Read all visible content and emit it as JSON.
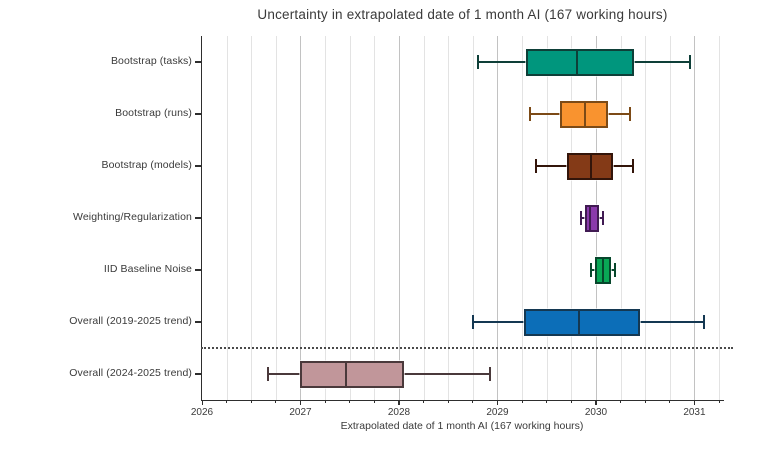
{
  "chart_data": {
    "type": "boxplot",
    "orientation": "horizontal",
    "title": "Uncertainty in extrapolated date of 1 month AI (167 working hours)",
    "xlabel": "Extrapolated date of 1 month AI (167 working hours)",
    "xlim": [
      2026,
      2031.3
    ],
    "xticks": [
      2026,
      2027,
      2028,
      2029,
      2030,
      2031
    ],
    "minor_tick_interval": 0.25,
    "grid": {
      "axis": "x",
      "interval": 0.25,
      "minor_color": "#e3e3e3",
      "major_color": "#c2c2c2"
    },
    "legend": "none",
    "separator": {
      "type": "dotted-line",
      "between": [
        "Overall (2019-2025 trend)",
        "Overall (2024-2025 trend)"
      ],
      "color": "#4a4a4a"
    },
    "categories": [
      "Bootstrap (tasks)",
      "Bootstrap (runs)",
      "Bootstrap (models)",
      "Weighting/Regularization",
      "IID Baseline Noise",
      "Overall (2019-2025 trend)",
      "Overall (2024-2025 trend)"
    ],
    "series": [
      {
        "label": "Bootstrap (tasks)",
        "whisker_low": 2028.8,
        "q1": 2029.29,
        "median": 2029.81,
        "q3": 2030.39,
        "whisker_high": 2030.95,
        "fill_color": "#00967d",
        "edge_color": "#0e3f38"
      },
      {
        "label": "Bootstrap (runs)",
        "whisker_low": 2029.33,
        "q1": 2029.63,
        "median": 2029.89,
        "q3": 2030.12,
        "whisker_high": 2030.35,
        "fill_color": "#f9932f",
        "edge_color": "#7c4a16"
      },
      {
        "label": "Bootstrap (models)",
        "whisker_low": 2029.39,
        "q1": 2029.71,
        "median": 2029.95,
        "q3": 2030.17,
        "whisker_high": 2030.38,
        "fill_color": "#843a17",
        "edge_color": "#33150a"
      },
      {
        "label": "Weighting/Regularization",
        "whisker_low": 2029.85,
        "q1": 2029.89,
        "median": 2029.94,
        "q3": 2030.03,
        "whisker_high": 2030.07,
        "fill_color": "#8a3aab",
        "edge_color": "#401a52"
      },
      {
        "label": "IID Baseline Noise",
        "whisker_low": 2029.95,
        "q1": 2029.99,
        "median": 2030.07,
        "q3": 2030.15,
        "whisker_high": 2030.19,
        "fill_color": "#09a756",
        "edge_color": "#07472c"
      },
      {
        "label": "Overall (2019-2025 trend)",
        "whisker_low": 2028.75,
        "q1": 2029.27,
        "median": 2029.83,
        "q3": 2030.45,
        "whisker_high": 2031.1,
        "fill_color": "#0c6eb8",
        "edge_color": "#143852"
      },
      {
        "label": "Overall (2024-2025 trend)",
        "whisker_low": 2026.67,
        "q1": 2027.0,
        "median": 2027.46,
        "q3": 2028.05,
        "whisker_high": 2028.92,
        "fill_color": "#c1969a",
        "edge_color": "#4a393b"
      }
    ]
  }
}
